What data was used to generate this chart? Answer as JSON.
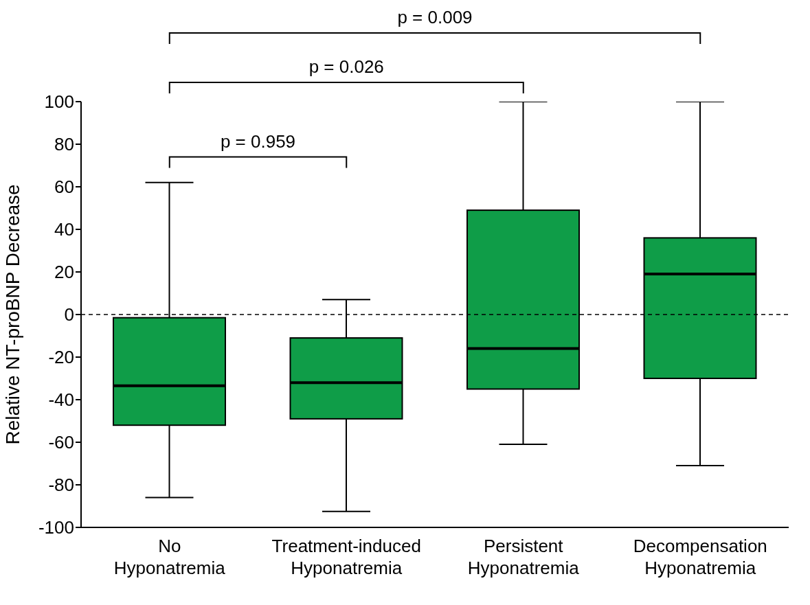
{
  "chart_data": {
    "type": "box",
    "ylabel": "Relative NT-proBNP Decrease",
    "categories": [
      "No Hyponatremia",
      "Treatment-induced Hyponatremia",
      "Persistent Hyponatremia",
      "Decompensation Hyponatremia"
    ],
    "color": "#0f9d48",
    "boxes": [
      {
        "low": -86,
        "q1": -52,
        "median": -33.5,
        "q3": -1.5,
        "high": 62
      },
      {
        "low": -92.5,
        "q1": -49,
        "median": -32,
        "q3": -11,
        "high": 7
      },
      {
        "low": -61,
        "q1": -35,
        "median": -16,
        "q3": 49,
        "high": 100
      },
      {
        "low": -71,
        "q1": -30,
        "median": 19,
        "q3": 36,
        "high": 100
      }
    ],
    "ylim": [
      -100,
      100
    ],
    "yticks": [
      -100,
      -80,
      -60,
      -40,
      -20,
      0,
      20,
      40,
      60,
      80,
      100
    ],
    "ref_lines": [
      {
        "axis": "y",
        "value": 0,
        "line_style": "dashed"
      }
    ],
    "annotations": [
      "p = 0.959",
      "p = 0.026",
      "p = 0.009"
    ]
  }
}
